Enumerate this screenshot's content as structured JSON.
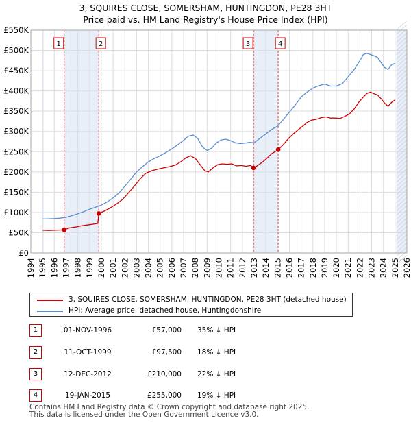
{
  "title": {
    "line1": "3, SQUIRES CLOSE, SOMERSHAM, HUNTINGDON, PE28 3HT",
    "line2": "Price paid vs. HM Land Registry's House Price Index (HPI)"
  },
  "chart_data": {
    "type": "line",
    "title": "3, SQUIRES CLOSE, SOMERSHAM, HUNTINGDON, PE28 3HT — Price paid vs. HM Land Registry's House Price Index (HPI)",
    "xlabel": "",
    "ylabel": "",
    "xlim": [
      1994,
      2026
    ],
    "ylim": [
      0,
      550000
    ],
    "x_ticks": [
      1994,
      1995,
      1996,
      1997,
      1998,
      1999,
      2000,
      2001,
      2002,
      2003,
      2004,
      2005,
      2006,
      2007,
      2008,
      2009,
      2010,
      2011,
      2012,
      2013,
      2014,
      2015,
      2016,
      2017,
      2018,
      2019,
      2020,
      2021,
      2022,
      2023,
      2024,
      2025,
      2026
    ],
    "y_ticks": [
      0,
      50000,
      100000,
      150000,
      200000,
      250000,
      300000,
      350000,
      400000,
      450000,
      500000,
      550000
    ],
    "y_tick_labels": [
      "£0",
      "£50K",
      "£100K",
      "£150K",
      "£200K",
      "£250K",
      "£300K",
      "£350K",
      "£400K",
      "£450K",
      "£500K",
      "£550K"
    ],
    "grid": true,
    "shaded_regions": [
      {
        "from": 1995.0,
        "to": 1995.1
      },
      {
        "from": 1996.84,
        "to": 1999.78
      },
      {
        "from": 2012.95,
        "to": 2015.05
      },
      {
        "from": 2025.1,
        "to": 2026.0
      }
    ],
    "series": [
      {
        "name": "3, SQUIRES CLOSE, SOMERSHAM, HUNTINGDON, PE28 3HT (detached house)",
        "color": "#cc0000",
        "x": [
          1995.0,
          1995.5,
          1996.0,
          1996.5,
          1996.84,
          1997.3,
          1997.8,
          1998.3,
          1998.8,
          1999.3,
          1999.7,
          1999.78,
          2000.3,
          2000.8,
          2001.3,
          2001.8,
          2002.3,
          2002.8,
          2003.3,
          2003.8,
          2004.3,
          2004.8,
          2005.3,
          2005.8,
          2006.3,
          2006.8,
          2007.2,
          2007.6,
          2008.0,
          2008.4,
          2008.8,
          2009.1,
          2009.5,
          2009.9,
          2010.3,
          2010.7,
          2011.1,
          2011.5,
          2011.9,
          2012.3,
          2012.7,
          2012.95,
          2013.3,
          2013.7,
          2014.1,
          2014.5,
          2014.9,
          2015.05,
          2015.5,
          2015.9,
          2016.3,
          2016.7,
          2017.1,
          2017.5,
          2017.9,
          2018.3,
          2018.7,
          2019.1,
          2019.5,
          2019.9,
          2020.3,
          2020.7,
          2021.1,
          2021.5,
          2021.9,
          2022.3,
          2022.6,
          2022.9,
          2023.2,
          2023.5,
          2023.8,
          2024.1,
          2024.4,
          2024.7,
          2025.0
        ],
        "values": [
          56000,
          55500,
          56000,
          56500,
          57000,
          62000,
          64000,
          67000,
          69000,
          71000,
          73000,
          97500,
          104000,
          112000,
          121000,
          132000,
          148000,
          165000,
          183000,
          197000,
          203000,
          207000,
          210000,
          213000,
          217000,
          226000,
          235000,
          240000,
          233000,
          218000,
          203000,
          200000,
          210000,
          218000,
          220000,
          219000,
          220000,
          215000,
          216000,
          214000,
          216000,
          210000,
          216000,
          224000,
          234000,
          245000,
          252000,
          255000,
          268000,
          282000,
          293000,
          303000,
          312000,
          322000,
          328000,
          330000,
          334000,
          336000,
          333000,
          333000,
          332000,
          337000,
          343000,
          355000,
          372000,
          385000,
          394000,
          397000,
          393000,
          390000,
          381000,
          370000,
          362000,
          372000,
          378000
        ]
      },
      {
        "name": "HPI: Average price, detached house, Huntingdonshire",
        "color": "#5b8ccf",
        "x": [
          1995.0,
          1995.5,
          1996.0,
          1996.5,
          1997.0,
          1997.5,
          1998.0,
          1998.5,
          1999.0,
          1999.5,
          2000.0,
          2000.5,
          2001.0,
          2001.5,
          2002.0,
          2002.5,
          2003.0,
          2003.5,
          2004.0,
          2004.5,
          2005.0,
          2005.5,
          2006.0,
          2006.5,
          2007.0,
          2007.4,
          2007.8,
          2008.2,
          2008.6,
          2009.0,
          2009.4,
          2009.8,
          2010.2,
          2010.6,
          2011.0,
          2011.4,
          2011.8,
          2012.2,
          2012.6,
          2013.0,
          2013.5,
          2014.0,
          2014.5,
          2015.0,
          2015.5,
          2016.0,
          2016.5,
          2017.0,
          2017.5,
          2018.0,
          2018.5,
          2019.0,
          2019.5,
          2020.0,
          2020.5,
          2021.0,
          2021.5,
          2022.0,
          2022.3,
          2022.6,
          2022.9,
          2023.2,
          2023.5,
          2023.8,
          2024.1,
          2024.4,
          2024.7,
          2025.0
        ],
        "values": [
          84000,
          84500,
          85000,
          86000,
          88000,
          92000,
          97000,
          102000,
          108000,
          113000,
          118000,
          126000,
          136000,
          148000,
          165000,
          182000,
          200000,
          213000,
          225000,
          233000,
          240000,
          248000,
          257000,
          267000,
          278000,
          288000,
          291000,
          283000,
          262000,
          253000,
          259000,
          272000,
          279000,
          281000,
          277000,
          272000,
          270000,
          271000,
          273000,
          272000,
          283000,
          294000,
          305000,
          313000,
          330000,
          348000,
          365000,
          385000,
          397000,
          407000,
          413000,
          417000,
          412000,
          412000,
          418000,
          435000,
          452000,
          475000,
          490000,
          493000,
          490000,
          487000,
          483000,
          470000,
          458000,
          453000,
          465000,
          468000
        ]
      }
    ],
    "sales": [
      {
        "num": "1",
        "x": 1996.84,
        "value": 57000
      },
      {
        "num": "2",
        "x": 1999.78,
        "value": 97500
      },
      {
        "num": "3",
        "x": 2012.95,
        "value": 210000
      },
      {
        "num": "4",
        "x": 2015.05,
        "value": 255000
      }
    ]
  },
  "legend": {
    "property_label": "3, SQUIRES CLOSE, SOMERSHAM, HUNTINGDON, PE28 3HT (detached house)",
    "hpi_label": "HPI: Average price, detached house, Huntingdonshire"
  },
  "transactions": [
    {
      "num": "1",
      "date": "01-NOV-1996",
      "price": "£57,000",
      "hpi": "35% ↓ HPI"
    },
    {
      "num": "2",
      "date": "11-OCT-1999",
      "price": "£97,500",
      "hpi": "18% ↓ HPI"
    },
    {
      "num": "3",
      "date": "12-DEC-2012",
      "price": "£210,000",
      "hpi": "22% ↓ HPI"
    },
    {
      "num": "4",
      "date": "19-JAN-2015",
      "price": "£255,000",
      "hpi": "19% ↓ HPI"
    }
  ],
  "footer": {
    "line1": "Contains HM Land Registry data © Crown copyright and database right 2025.",
    "line2": "This data is licensed under the Open Government Licence v3.0."
  },
  "colors": {
    "property": "#cc0000",
    "hpi": "#5b8ccf",
    "grid": "#dddddd",
    "shade": "#e9eff8",
    "marker_line": "#e05050"
  }
}
